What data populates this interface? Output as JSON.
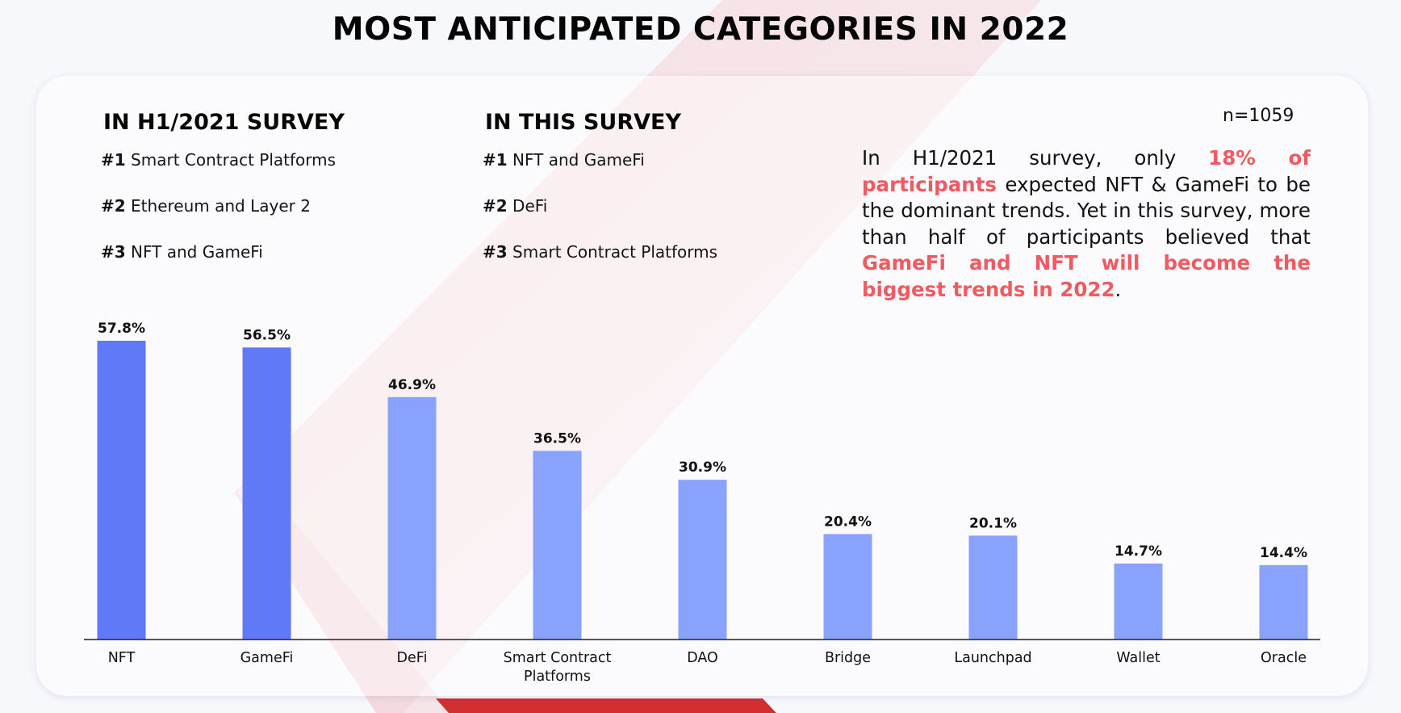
{
  "title": "MOST ANTICIPATED CATEGORIES IN 2022",
  "sample_size": "n=1059",
  "surveys": [
    {
      "heading": "IN H1/2021 SURVEY",
      "items": [
        {
          "rank": "#1",
          "label": "Smart Contract Platforms"
        },
        {
          "rank": "#2",
          "label": "Ethereum and Layer 2"
        },
        {
          "rank": "#3",
          "label": "NFT and GameFi"
        }
      ]
    },
    {
      "heading": "IN THIS SURVEY",
      "items": [
        {
          "rank": "#1",
          "label": "NFT and GameFi"
        },
        {
          "rank": "#2",
          "label": "DeFi"
        },
        {
          "rank": "#3",
          "label": "Smart Contract Platforms"
        }
      ]
    }
  ],
  "note": {
    "part1": "In H1/2021 survey, only ",
    "highlight1": "18% of participants",
    "part2": " expected NFT & GameFi to be the dominant trends. Yet in this survey, more than half of participants believed that ",
    "highlight2": "GameFi and NFT will become the biggest trends in 2022",
    "part3": "."
  },
  "colors": {
    "highlight": "#ef5b61",
    "bar_top": "#6079f7",
    "bar_other": "#89a2fb",
    "decor_red": "#d32f2f"
  },
  "chart_data": {
    "type": "bar",
    "categories": [
      "NFT",
      "GameFi",
      "DeFi",
      "Smart Contract Platforms",
      "DAO",
      "Bridge",
      "Launchpad",
      "Wallet",
      "Oracle"
    ],
    "category_lines": [
      [
        "NFT"
      ],
      [
        "GameFi"
      ],
      [
        "DeFi"
      ],
      [
        "Smart Contract",
        "Platforms"
      ],
      [
        "DAO"
      ],
      [
        "Bridge"
      ],
      [
        "Launchpad"
      ],
      [
        "Wallet"
      ],
      [
        "Oracle"
      ]
    ],
    "values": [
      57.8,
      56.5,
      46.9,
      36.5,
      30.9,
      20.4,
      20.1,
      14.7,
      14.4
    ],
    "value_labels": [
      "57.8%",
      "56.5%",
      "46.9%",
      "36.5%",
      "30.9%",
      "20.4%",
      "20.1%",
      "14.7%",
      "14.4%"
    ],
    "highlighted": [
      true,
      true,
      false,
      false,
      false,
      false,
      false,
      false,
      false
    ],
    "ylim": [
      0,
      57.8
    ],
    "grid": false,
    "legend": "none"
  }
}
